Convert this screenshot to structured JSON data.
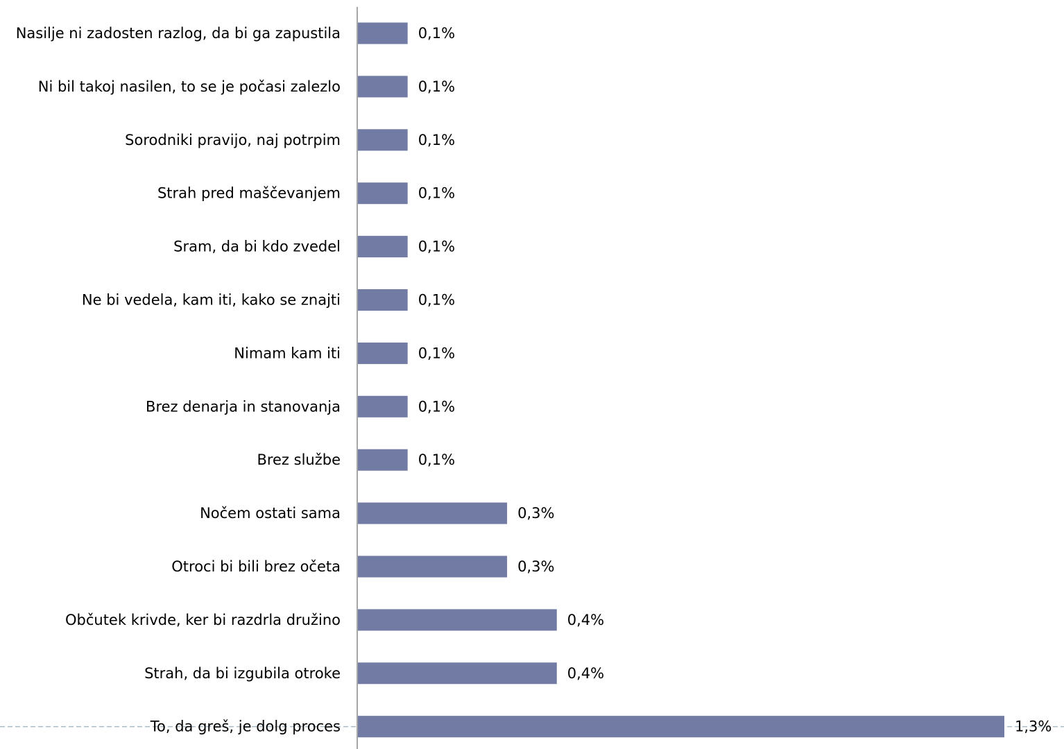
{
  "chart_data": {
    "type": "bar",
    "orientation": "horizontal",
    "categories": [
      "Nasilje ni zadosten razlog, da bi ga zapustila",
      "Ni bil takoj nasilen, to se je počasi zalezlo",
      "Sorodniki pravijo, naj potrpim",
      "Strah pred maščevanjem",
      "Sram, da bi kdo zvedel",
      "Ne bi vedela, kam iti, kako se znajti",
      "Nimam kam iti",
      "Brez denarja in stanovanja",
      "Brez službe",
      "Nočem ostati sama",
      "Otroci bi bili brez očeta",
      "Občutek krivde, ker bi razdrla družino",
      "Strah, da bi izgubila otroke",
      "To, da greš, je dolg proces"
    ],
    "values": [
      0.1,
      0.1,
      0.1,
      0.1,
      0.1,
      0.1,
      0.1,
      0.1,
      0.1,
      0.3,
      0.3,
      0.4,
      0.4,
      1.3
    ],
    "value_labels": [
      "0,1%",
      "0,1%",
      "0,1%",
      "0,1%",
      "0,1%",
      "0,1%",
      "0,1%",
      "0,1%",
      "0,1%",
      "0,3%",
      "0,3%",
      "0,4%",
      "0,4%",
      "1,3%"
    ],
    "xlim": [
      0,
      1.3
    ],
    "title": "",
    "xlabel": "",
    "ylabel": "",
    "grid": false,
    "legend": "none",
    "colors": {
      "bar": "#717ba3",
      "axis": "#8a8a8a",
      "dashed_line": "#a9bccb"
    }
  }
}
